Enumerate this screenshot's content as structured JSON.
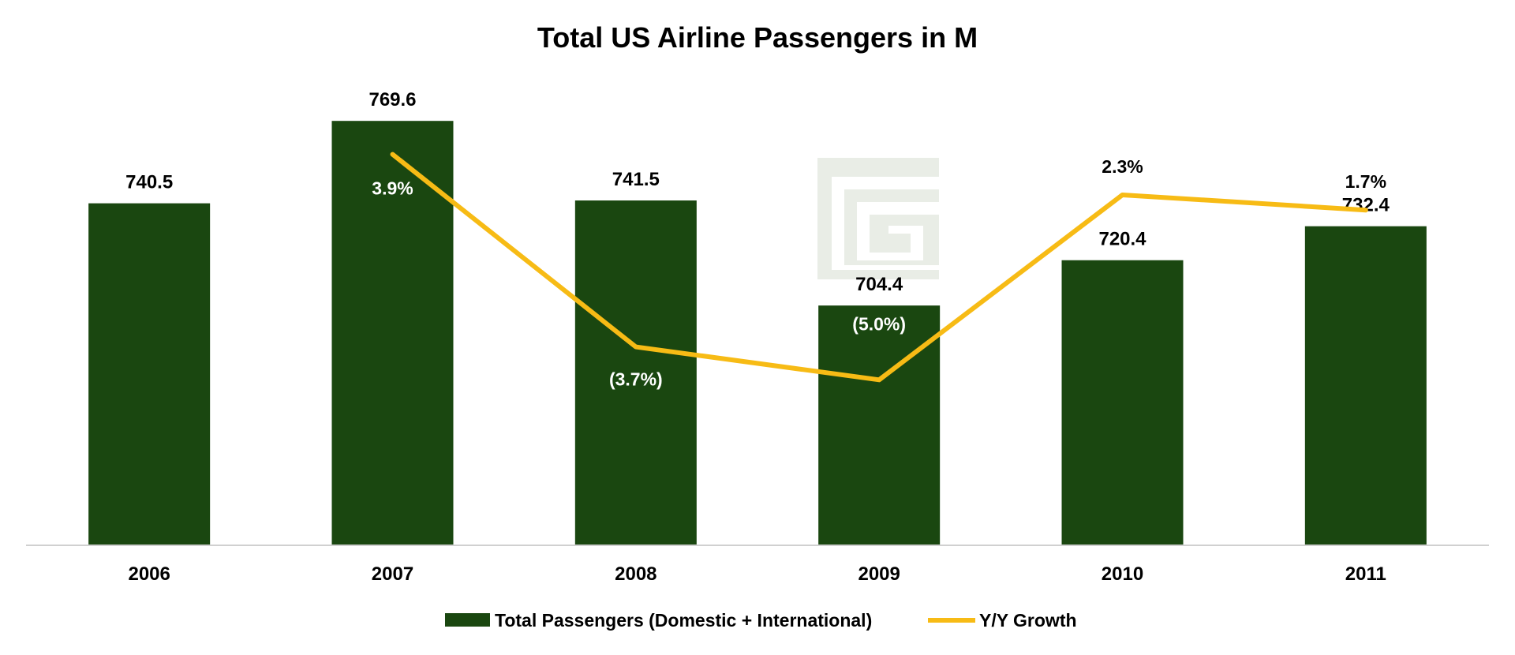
{
  "chart_data": {
    "type": "bar",
    "title": "Total US Airline Passengers in M",
    "categories": [
      "2006",
      "2007",
      "2008",
      "2009",
      "2010",
      "2011"
    ],
    "series": [
      {
        "name": "Total Passengers (Domestic + International)",
        "type": "bar",
        "values": [
          740.5,
          769.6,
          741.5,
          704.4,
          720.4,
          732.4
        ],
        "labels": [
          "740.5",
          "769.6",
          "741.5",
          "704.4",
          "720.4",
          "732.4"
        ],
        "color": "#1a4710"
      },
      {
        "name": "Y/Y Growth",
        "type": "line",
        "values": [
          null,
          3.9,
          -3.7,
          -5.0,
          2.3,
          1.7
        ],
        "labels": [
          "",
          "3.9%",
          "(3.7%)",
          "(5.0%)",
          "2.3%",
          "1.7%"
        ],
        "color": "#f7bb15"
      }
    ],
    "ylim": [
      620,
      790
    ],
    "y2lim": [
      -11.5,
      7.5
    ],
    "grid": false,
    "legend": "bottom"
  },
  "colors": {
    "bar": "#1a4710",
    "line": "#f7bb15",
    "axis": "#d0d0d0",
    "watermark": "#e9ede6"
  },
  "watermark": {
    "icon": "logo-watermark-icon"
  }
}
